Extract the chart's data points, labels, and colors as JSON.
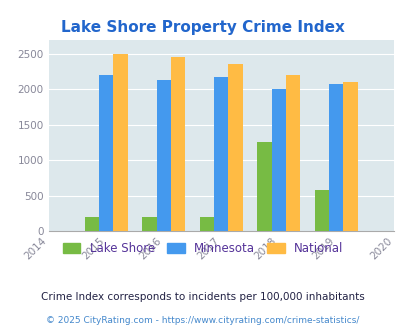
{
  "title": "Lake Shore Property Crime Index",
  "years": [
    2015,
    2016,
    2017,
    2018,
    2019
  ],
  "lake_shore": [
    200,
    200,
    200,
    1250,
    575
  ],
  "minnesota": [
    2200,
    2125,
    2175,
    2000,
    2075
  ],
  "national": [
    2500,
    2450,
    2350,
    2200,
    2100
  ],
  "xlim": [
    2014,
    2020
  ],
  "ylim": [
    0,
    2700
  ],
  "yticks": [
    0,
    500,
    1000,
    1500,
    2000,
    2500
  ],
  "xticks": [
    2014,
    2015,
    2016,
    2017,
    2018,
    2019,
    2020
  ],
  "color_lake_shore": "#77bb44",
  "color_minnesota": "#4499ee",
  "color_national": "#ffbb44",
  "bg_color": "#dde8ec",
  "legend_labels": [
    "Lake Shore",
    "Minnesota",
    "National"
  ],
  "legend_text_color": "#553399",
  "footnote1": "Crime Index corresponds to incidents per 100,000 inhabitants",
  "footnote2": "© 2025 CityRating.com - https://www.cityrating.com/crime-statistics/",
  "title_color": "#2266cc",
  "footnote1_color": "#222244",
  "footnote2_color": "#4488cc",
  "bar_width": 0.25,
  "tick_color": "#888899"
}
